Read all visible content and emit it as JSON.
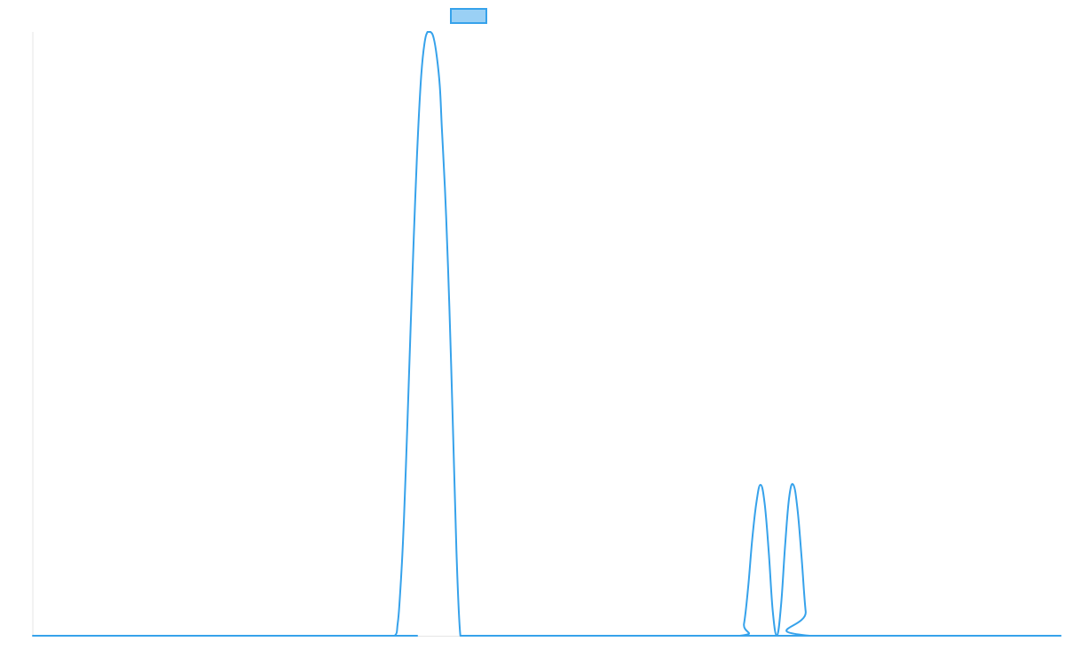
{
  "chart_data": {
    "type": "line",
    "title": "",
    "xlabel": "",
    "ylabel": "",
    "xlim": [
      0,
      1000
    ],
    "ylim": [
      0,
      100
    ],
    "grid": false,
    "legend": {
      "position": "top-center",
      "entries": [
        {
          "name": "",
          "color": "#9ad0f5",
          "border": "#36a2eb"
        }
      ]
    },
    "series": [
      {
        "name": "",
        "color": "#36a2eb",
        "x": [
          0,
          340,
          352,
          355,
          357,
          360,
          363,
          366,
          369,
          372,
          375,
          378,
          381,
          384,
          387,
          390,
          393,
          396,
          398,
          401,
          404,
          407,
          410,
          413,
          416,
          419,
          422,
          425,
          428,
          431,
          434,
          437,
          440,
          443,
          446,
          449,
          452,
          455,
          458,
          460,
          462,
          464,
          466,
          468,
          470,
          472,
          474,
          476,
          478,
          480,
          482,
          484,
          486,
          488,
          490,
          492,
          494,
          496,
          498,
          500,
          502,
          504,
          506,
          508,
          510,
          512,
          514,
          516,
          518,
          520,
          522,
          524,
          526,
          528,
          530,
          532,
          534,
          1000
        ],
        "y": [
          0,
          0,
          0,
          2,
          6,
          15,
          28,
          43,
          58,
          72,
          84,
          93,
          98,
          100,
          100,
          99,
          96,
          91,
          84,
          74,
          61,
          45,
          27,
          10,
          0,
          0,
          0,
          0,
          0,
          0,
          0,
          0,
          0,
          0,
          0,
          0,
          0,
          0,
          0,
          0,
          0,
          0,
          0,
          0,
          0,
          0,
          0,
          0,
          0,
          0,
          0,
          0,
          0,
          0,
          0,
          0,
          0,
          0,
          0,
          0,
          0,
          0,
          0,
          0,
          0,
          0,
          0,
          0,
          0,
          0,
          0,
          0,
          0,
          0,
          0,
          0,
          0,
          0
        ]
      },
      {
        "name": "",
        "color": "#36a2eb",
        "x": [
          600,
          688,
          692,
          696,
          700,
          704,
          708,
          712,
          716,
          720,
          724,
          728,
          732,
          736,
          740,
          744,
          748,
          752,
          756,
          1000
        ],
        "y": [
          0,
          0,
          2,
          8,
          16,
          22,
          25,
          22,
          14,
          4,
          0,
          5,
          15,
          23,
          25,
          21,
          13,
          4,
          0,
          0
        ]
      }
    ]
  }
}
